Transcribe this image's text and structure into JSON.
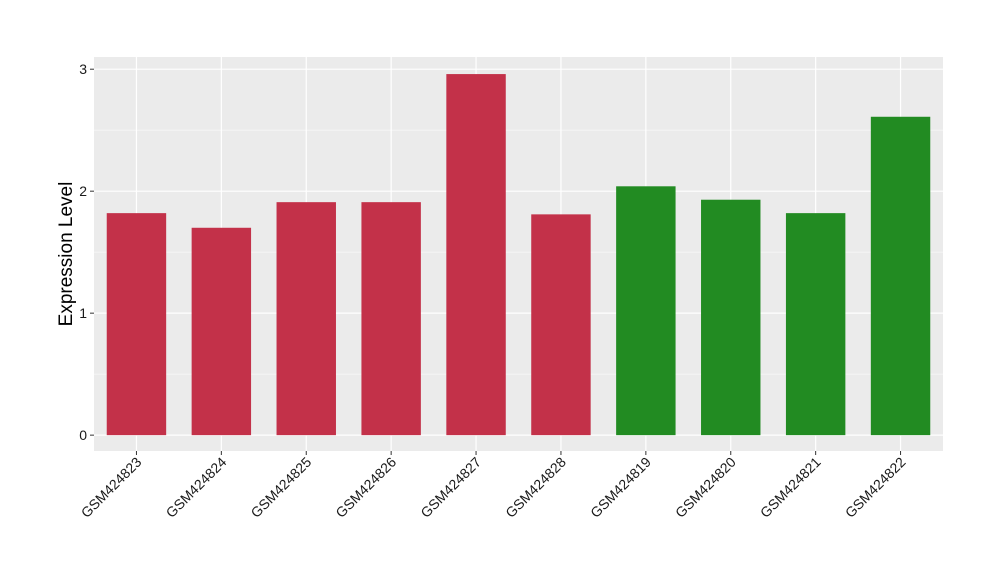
{
  "chart_data": {
    "type": "bar",
    "title": "",
    "xlabel": "",
    "ylabel": "Expression Level",
    "categories": [
      "GSM424823",
      "GSM424824",
      "GSM424825",
      "GSM424826",
      "GSM424827",
      "GSM424828",
      "GSM424819",
      "GSM424820",
      "GSM424821",
      "GSM424822"
    ],
    "values": [
      1.82,
      1.7,
      1.91,
      1.91,
      2.96,
      1.81,
      2.04,
      1.93,
      1.82,
      2.61
    ],
    "bar_colors": [
      "#c33149",
      "#c33149",
      "#c33149",
      "#c33149",
      "#c33149",
      "#c33149",
      "#228b22",
      "#228b22",
      "#228b22",
      "#228b22"
    ],
    "ylim": [
      -0.13,
      3.1
    ],
    "yticks": [
      0,
      1,
      2,
      3
    ],
    "grid": true,
    "legend": "none",
    "colors": {
      "panel_background": "#ebebeb",
      "grid_major": "#ffffff",
      "grid_minor": "#f5f5f5",
      "tick_color": "#333333"
    }
  }
}
